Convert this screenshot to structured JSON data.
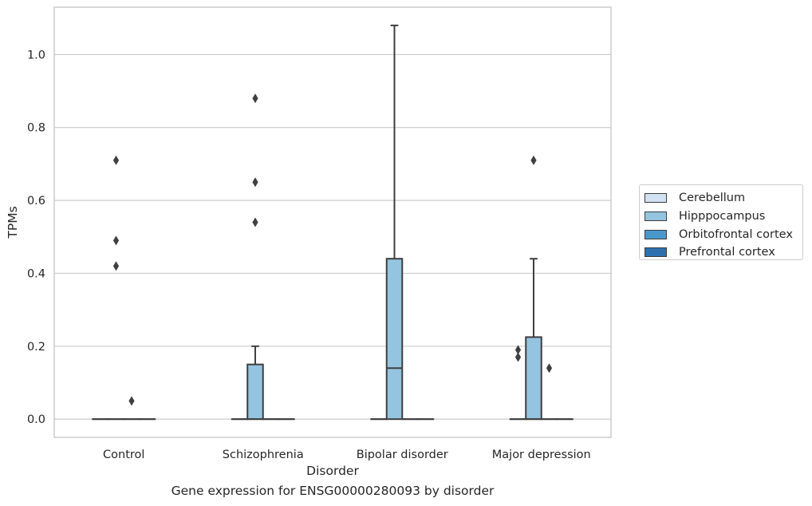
{
  "figure": {
    "caption": "Gene expression for ENSG00000280093 by disorder"
  },
  "chart_data": {
    "type": "boxplot",
    "xlabel": "Disorder",
    "ylabel": "TPMs",
    "ylim": [
      -0.05,
      1.13
    ],
    "yticks": [
      "0.0",
      "0.2",
      "0.4",
      "0.6",
      "0.8",
      "1.0"
    ],
    "grid": "horizontal",
    "legend_position": "right",
    "categories": [
      "Control",
      "Schizophrenia",
      "Bipolar disorder",
      "Major depression"
    ],
    "series": [
      {
        "name": "Cerebellum",
        "color": "#d0e1f2",
        "boxes": [
          {
            "q1": 0,
            "median": 0,
            "q3": 0,
            "whislo": 0,
            "whishi": 0,
            "fliers": []
          },
          {
            "q1": 0,
            "median": 0,
            "q3": 0,
            "whislo": 0,
            "whishi": 0,
            "fliers": []
          },
          {
            "q1": 0,
            "median": 0,
            "q3": 0,
            "whislo": 0,
            "whishi": 0,
            "fliers": []
          },
          {
            "q1": 0,
            "median": 0,
            "q3": 0,
            "whislo": 0,
            "whishi": 0,
            "fliers": [
              0.19,
              0.17
            ]
          }
        ]
      },
      {
        "name": "Hipppocampus",
        "color": "#94c4df",
        "boxes": [
          {
            "q1": 0,
            "median": 0,
            "q3": 0,
            "whislo": 0,
            "whishi": 0,
            "fliers": [
              0.71,
              0.49,
              0.42
            ]
          },
          {
            "q1": 0,
            "median": 0,
            "q3": 0.15,
            "whislo": 0,
            "whishi": 0.2,
            "fliers": [
              0.88,
              0.65,
              0.54
            ]
          },
          {
            "q1": 0,
            "median": 0.14,
            "q3": 0.44,
            "whislo": 0,
            "whishi": 1.08,
            "fliers": []
          },
          {
            "q1": 0,
            "median": 0,
            "q3": 0.225,
            "whislo": 0,
            "whishi": 0.44,
            "fliers": [
              0.71
            ]
          }
        ]
      },
      {
        "name": "Orbitofrontal cortex",
        "color": "#4a98c9",
        "boxes": [
          {
            "q1": 0,
            "median": 0,
            "q3": 0,
            "whislo": 0,
            "whishi": 0,
            "fliers": [
              0.05
            ]
          },
          {
            "q1": 0,
            "median": 0,
            "q3": 0,
            "whislo": 0,
            "whishi": 0,
            "fliers": []
          },
          {
            "q1": 0,
            "median": 0,
            "q3": 0,
            "whislo": 0,
            "whishi": 0,
            "fliers": []
          },
          {
            "q1": 0,
            "median": 0,
            "q3": 0,
            "whislo": 0,
            "whishi": 0,
            "fliers": [
              0.14
            ]
          }
        ]
      },
      {
        "name": "Prefrontal cortex",
        "color": "#2e6fb0",
        "boxes": [
          {
            "q1": 0,
            "median": 0,
            "q3": 0,
            "whislo": 0,
            "whishi": 0,
            "fliers": []
          },
          {
            "q1": 0,
            "median": 0,
            "q3": 0,
            "whislo": 0,
            "whishi": 0,
            "fliers": []
          },
          {
            "q1": 0,
            "median": 0,
            "q3": 0,
            "whislo": 0,
            "whishi": 0,
            "fliers": []
          },
          {
            "q1": 0,
            "median": 0,
            "q3": 0,
            "whislo": 0,
            "whishi": 0,
            "fliers": []
          }
        ]
      }
    ]
  }
}
